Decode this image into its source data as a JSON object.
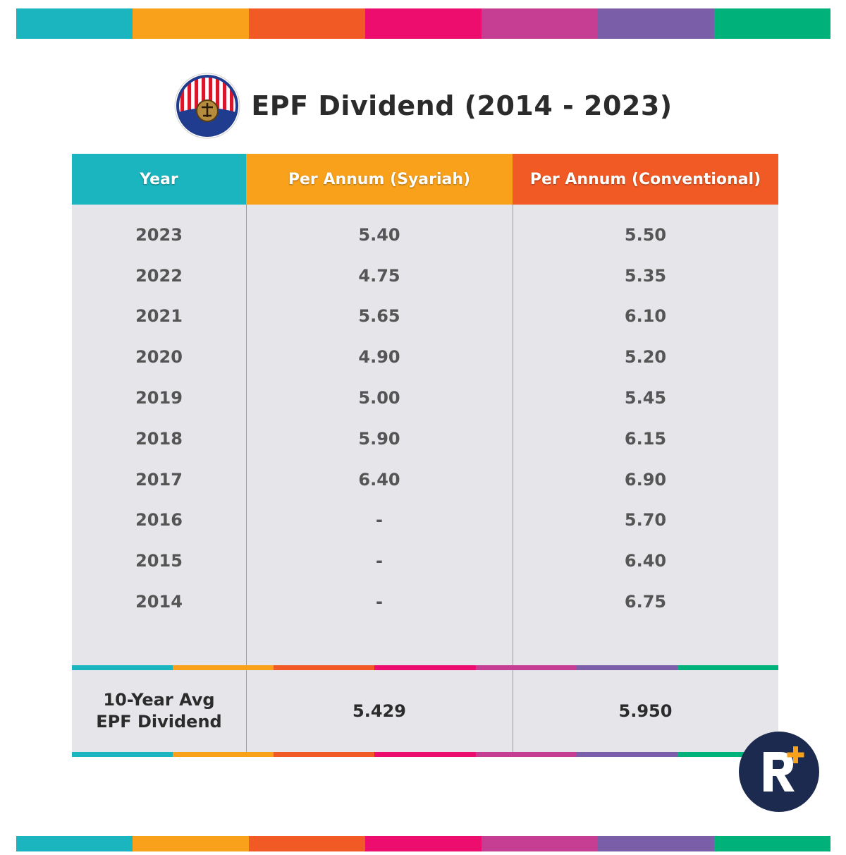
{
  "palette": {
    "teal": "#1ab5be",
    "orange": "#f9a11b",
    "red": "#f15a24",
    "magenta": "#ec0d6f",
    "pink": "#c63d94",
    "purple": "#7b5ea8",
    "green": "#00b27a"
  },
  "title": "EPF Dividend (2014 - 2023)",
  "table": {
    "headers": [
      {
        "label": "Year",
        "color": "#1ab5be"
      },
      {
        "label": "Per Annum (Syariah)",
        "color": "#f9a11b"
      },
      {
        "label": "Per Annum (Conventional)",
        "color": "#f15a24"
      }
    ],
    "rows": [
      {
        "year": "2023",
        "syariah": "5.40",
        "conventional": "5.50"
      },
      {
        "year": "2022",
        "syariah": "4.75",
        "conventional": "5.35"
      },
      {
        "year": "2021",
        "syariah": "5.65",
        "conventional": "6.10"
      },
      {
        "year": "2020",
        "syariah": "4.90",
        "conventional": "5.20"
      },
      {
        "year": "2019",
        "syariah": "5.00",
        "conventional": "5.45"
      },
      {
        "year": "2018",
        "syariah": "5.90",
        "conventional": "6.15"
      },
      {
        "year": "2017",
        "syariah": "6.40",
        "conventional": "6.90"
      },
      {
        "year": "2016",
        "syariah": "-",
        "conventional": "5.70"
      },
      {
        "year": "2015",
        "syariah": "-",
        "conventional": "6.40"
      },
      {
        "year": "2014",
        "syariah": "-",
        "conventional": "6.75"
      }
    ],
    "footer": {
      "label_line1": "10-Year Avg",
      "label_line2": "EPF Dividend",
      "syariah_avg": "5.429",
      "conventional_avg": "5.950"
    }
  },
  "icons": {
    "epf_logo": "kwsp-logo-icon",
    "brand_logo": "r-plus-logo-icon"
  }
}
